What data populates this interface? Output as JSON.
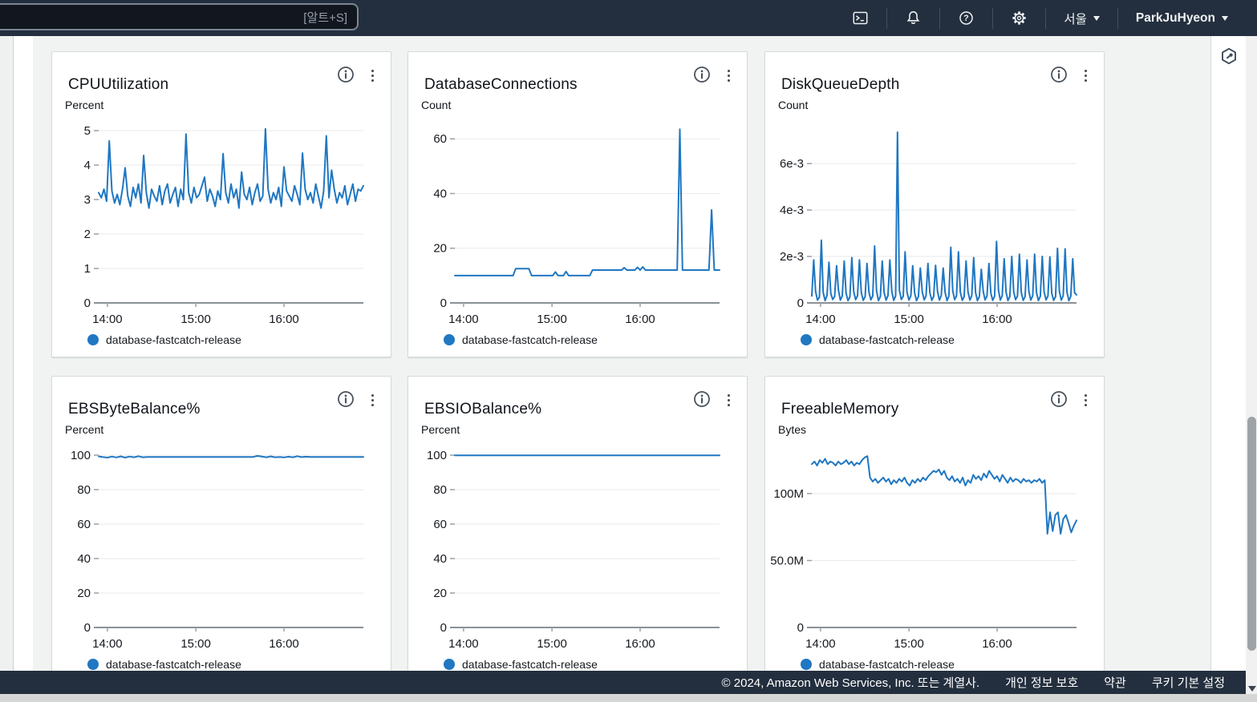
{
  "topbar": {
    "search_shortcut": "[알트+S]",
    "region": "서울",
    "user": "ParkJuHyeon"
  },
  "footer": {
    "copyright": "© 2024, Amazon Web Services, Inc. 또는 계열사.",
    "links": [
      "개인 정보 보호",
      "약관",
      "쿠키 기본 설정"
    ]
  },
  "line_color": "#2077c2",
  "chart_data": [
    {
      "type": "line",
      "title": "CPUUtilization",
      "ylabel": "Percent",
      "legend": "database-fastcatch-release",
      "ylim": [
        0,
        5
      ],
      "y_ticks": [
        {
          "v": 0,
          "label": "0"
        },
        {
          "v": 1,
          "label": "1"
        },
        {
          "v": 2,
          "label": "2"
        },
        {
          "v": 3,
          "label": "3"
        },
        {
          "v": 4,
          "label": "4"
        },
        {
          "v": 5,
          "label": "5"
        }
      ],
      "x_ticks": [
        {
          "f": 0.033,
          "label": "14:00"
        },
        {
          "f": 0.367,
          "label": "15:00"
        },
        {
          "f": 0.7,
          "label": "16:00"
        }
      ],
      "series": [
        {
          "name": "database-fastcatch-release",
          "values": [
            3.2,
            3.05,
            3.3,
            2.95,
            4.7,
            3.25,
            2.9,
            3.15,
            2.85,
            3.3,
            3.92,
            3.1,
            2.8,
            3.35,
            3.05,
            3.45,
            2.9,
            4.28,
            3.2,
            2.75,
            3.3,
            3.1,
            2.95,
            3.4,
            2.85,
            3.25,
            3.45,
            2.9,
            3.15,
            3.35,
            2.8,
            3.3,
            3.0,
            4.9,
            3.2,
            2.9,
            3.35,
            3.05,
            3.15,
            3.4,
            3.65,
            2.95,
            3.3,
            3.1,
            2.8,
            3.25,
            3.0,
            4.33,
            3.2,
            2.9,
            3.45,
            3.05,
            3.3,
            2.75,
            3.8,
            3.15,
            3.0,
            3.35,
            2.85,
            3.2,
            3.45,
            2.95,
            3.1,
            5.05,
            3.3,
            2.9,
            3.2,
            3.0,
            3.35,
            2.8,
            3.95,
            3.25,
            3.1,
            2.95,
            3.4,
            3.15,
            2.85,
            4.35,
            3.3,
            3.0,
            3.2,
            2.9,
            3.45,
            3.1,
            2.75,
            3.25,
            4.85,
            3.05,
            3.85,
            3.3,
            2.9,
            3.2,
            3.05,
            3.4,
            2.85,
            3.15,
            3.45,
            2.95,
            3.3,
            3.25,
            3.4
          ]
        }
      ]
    },
    {
      "type": "line",
      "title": "DatabaseConnections",
      "ylabel": "Count",
      "legend": "database-fastcatch-release",
      "ylim": [
        0,
        63
      ],
      "y_ticks": [
        {
          "v": 0,
          "label": "0"
        },
        {
          "v": 20,
          "label": "20"
        },
        {
          "v": 40,
          "label": "40"
        },
        {
          "v": 60,
          "label": "60"
        }
      ],
      "x_ticks": [
        {
          "f": 0.033,
          "label": "14:00"
        },
        {
          "f": 0.367,
          "label": "15:00"
        },
        {
          "f": 0.7,
          "label": "16:00"
        }
      ],
      "series": [
        {
          "name": "database-fastcatch-release",
          "values": [
            10,
            10,
            10,
            10,
            10,
            10,
            10,
            10,
            10,
            10,
            10,
            10,
            10,
            10,
            10,
            10,
            10,
            10,
            10,
            10,
            10,
            10,
            10,
            12.5,
            12.5,
            12.5,
            12.5,
            12.5,
            12.5,
            10,
            10,
            10,
            10,
            10,
            10,
            10,
            10,
            10,
            11.3,
            10,
            10,
            10,
            11.5,
            10,
            10,
            10,
            10,
            10,
            10,
            10,
            10,
            10,
            12,
            12,
            12,
            12,
            12,
            12,
            12,
            12,
            12,
            12,
            12,
            12,
            12.9,
            12,
            12,
            12,
            12,
            13,
            12,
            13.2,
            12,
            12,
            12,
            12,
            12,
            12,
            12,
            12,
            12,
            12,
            12,
            12,
            12,
            63.5,
            12,
            12,
            12,
            12,
            12,
            12,
            12,
            12,
            12,
            12,
            12,
            34,
            12,
            12,
            12
          ]
        }
      ]
    },
    {
      "type": "line",
      "title": "DiskQueueDepth",
      "ylabel": "Count",
      "legend": "database-fastcatch-release",
      "ylim": [
        0,
        0.00742
      ],
      "y_ticks": [
        {
          "v": 0,
          "label": "0"
        },
        {
          "v": 0.002,
          "label": "2e-3"
        },
        {
          "v": 0.004,
          "label": "4e-3"
        },
        {
          "v": 0.006,
          "label": "6e-3"
        }
      ],
      "x_ticks": [
        {
          "f": 0.033,
          "label": "14:00"
        },
        {
          "f": 0.367,
          "label": "15:00"
        },
        {
          "f": 0.7,
          "label": "16:00"
        }
      ],
      "series": [
        {
          "name": "database-fastcatch-release",
          "values": [
            0.0003,
            0.00185,
            0.0005,
            0.00012,
            0.00025,
            0.0027,
            0.00045,
            0.0001,
            0.00032,
            0.00175,
            0.0004,
            0.00015,
            0.00028,
            0.0016,
            0.00055,
            0.00012,
            0.0003,
            0.0018,
            0.00042,
            0.0001,
            0.00026,
            0.00195,
            0.0005,
            0.00014,
            0.00031,
            0.00185,
            0.00045,
            0.00011,
            0.00027,
            0.0017,
            0.00048,
            0.00013,
            0.0003,
            0.00245,
            0.00052,
            0.0001,
            0.00028,
            0.0018,
            0.00044,
            0.00012,
            0.00032,
            0.00185,
            0.0005,
            0.00011,
            0.0003,
            0.00735,
            0.00055,
            0.00015,
            0.00029,
            0.0022,
            0.00046,
            0.00012,
            0.00031,
            0.0016,
            0.00042,
            0.0001,
            0.00027,
            0.0015,
            0.00048,
            0.00013,
            0.0003,
            0.0017,
            0.00044,
            0.00011,
            0.00028,
            0.00162,
            0.0005,
            0.00012,
            0.00032,
            0.0015,
            0.00045,
            0.0001,
            0.00029,
            0.0024,
            0.00052,
            0.00014,
            0.0003,
            0.0022,
            0.00046,
            0.00011,
            0.00027,
            0.0018,
            0.00048,
            0.00012,
            0.00031,
            0.00195,
            0.00044,
            0.0001,
            0.00028,
            0.00145,
            0.0005,
            0.00013,
            0.0003,
            0.0017,
            0.00042,
            0.00011,
            0.00029,
            0.00265,
            0.00055,
            0.00012,
            0.00032,
            0.0019,
            0.00046,
            0.0001,
            0.00028,
            0.002,
            0.00048,
            0.00014,
            0.0003,
            0.0021,
            0.00044,
            0.00011,
            0.00027,
            0.00185,
            0.0005,
            0.00012,
            0.00031,
            0.0021,
            0.00045,
            0.0001,
            0.00029,
            0.002,
            0.00048,
            0.00013,
            0.0003,
            0.00198,
            0.00042,
            0.00011,
            0.00028,
            0.00235,
            0.00052,
            0.00012,
            0.00031,
            0.00233,
            0.00046,
            0.0001,
            0.00029,
            0.0019,
            0.00044,
            0.00035
          ]
        }
      ]
    },
    {
      "type": "line",
      "title": "EBSByteBalance%",
      "ylabel": "Percent",
      "legend": "database-fastcatch-release",
      "ylim": [
        0,
        100
      ],
      "y_ticks": [
        {
          "v": 0,
          "label": "0"
        },
        {
          "v": 20,
          "label": "20"
        },
        {
          "v": 40,
          "label": "40"
        },
        {
          "v": 60,
          "label": "60"
        },
        {
          "v": 80,
          "label": "80"
        },
        {
          "v": 100,
          "label": "100"
        }
      ],
      "x_ticks": [
        {
          "f": 0.033,
          "label": "14:00"
        },
        {
          "f": 0.367,
          "label": "15:00"
        },
        {
          "f": 0.7,
          "label": "16:00"
        }
      ],
      "series": [
        {
          "name": "database-fastcatch-release",
          "values": [
            99.3,
            98.9,
            98.6,
            99.2,
            98.7,
            99.3,
            98.6,
            99.2,
            98.8,
            99.4,
            98.8,
            99.0,
            99.0,
            99.0,
            99.0,
            99.0,
            99.0,
            99.0,
            99.0,
            99.0,
            99.0,
            99.0,
            99.0,
            99.0,
            99.0,
            99.0,
            99.0,
            99.0,
            99.0,
            99.0,
            99.0,
            99.0,
            99.0,
            99.0,
            99.0,
            99.0,
            99.6,
            99.2,
            98.8,
            99.3,
            98.8,
            99.0,
            98.7,
            99.1,
            98.8,
            99.4,
            98.9,
            99.1,
            99.0,
            99.0,
            99.0,
            99.0,
            99.0,
            99.0,
            99.0,
            99.0,
            99.0,
            99.0,
            99.0,
            99.0,
            99.0
          ]
        }
      ]
    },
    {
      "type": "line",
      "title": "EBSIOBalance%",
      "ylabel": "Percent",
      "legend": "database-fastcatch-release",
      "ylim": [
        0,
        100
      ],
      "y_ticks": [
        {
          "v": 0,
          "label": "0"
        },
        {
          "v": 20,
          "label": "20"
        },
        {
          "v": 40,
          "label": "40"
        },
        {
          "v": 60,
          "label": "60"
        },
        {
          "v": 80,
          "label": "80"
        },
        {
          "v": 100,
          "label": "100"
        }
      ],
      "x_ticks": [
        {
          "f": 0.033,
          "label": "14:00"
        },
        {
          "f": 0.367,
          "label": "15:00"
        },
        {
          "f": 0.7,
          "label": "16:00"
        }
      ],
      "series": [
        {
          "name": "database-fastcatch-release",
          "values": [
            99.9,
            99.9
          ]
        }
      ]
    },
    {
      "type": "line",
      "title": "FreeableMemory",
      "ylabel": "Bytes",
      "legend": "database-fastcatch-release",
      "ylim": [
        0,
        128.7
      ],
      "unit_note": "values in millions of bytes (M)",
      "y_ticks": [
        {
          "v": 0,
          "label": "0"
        },
        {
          "v": 50,
          "label": "50.0M"
        },
        {
          "v": 100,
          "label": "100M"
        }
      ],
      "x_ticks": [
        {
          "f": 0.033,
          "label": "14:00"
        },
        {
          "f": 0.367,
          "label": "15:00"
        },
        {
          "f": 0.7,
          "label": "16:00"
        }
      ],
      "series": [
        {
          "name": "database-fastcatch-release",
          "values": [
            122,
            124,
            121,
            125,
            123,
            126,
            122,
            124,
            123,
            121,
            124,
            122,
            123,
            125,
            122,
            124,
            121,
            123,
            122,
            125,
            127,
            128,
            112,
            109,
            111,
            108,
            110,
            112,
            109,
            111,
            107,
            110,
            108,
            111,
            109,
            112,
            108,
            106,
            110,
            108,
            111,
            109,
            112,
            110,
            113,
            115,
            117,
            116,
            118,
            114,
            117,
            112,
            110,
            113,
            109,
            111,
            108,
            112,
            106,
            110,
            108,
            114,
            111,
            113,
            110,
            115,
            112,
            117,
            114,
            111,
            113,
            109,
            114,
            111,
            108,
            112,
            109,
            111,
            110,
            108,
            111,
            109,
            110,
            108,
            110,
            109,
            111,
            108,
            110,
            70,
            86,
            72,
            84,
            86,
            70,
            81,
            84,
            78,
            71,
            76,
            80
          ]
        }
      ]
    }
  ]
}
